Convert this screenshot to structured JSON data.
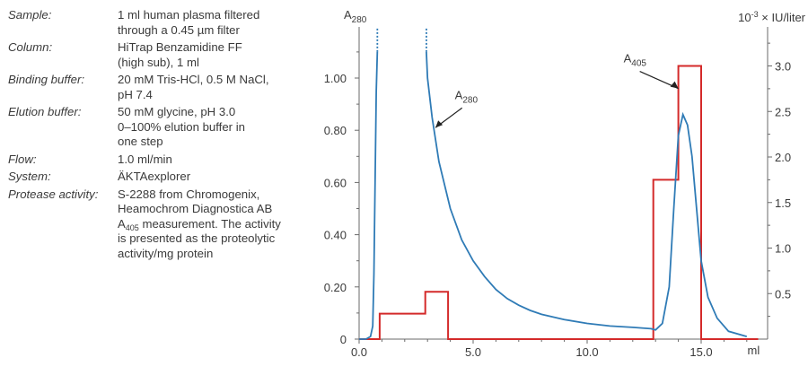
{
  "conditions": [
    {
      "label": "Sample:",
      "lines": [
        "1 ml human plasma filtered",
        "through a 0.45 µm filter"
      ]
    },
    {
      "label": "Column:",
      "lines": [
        "HiTrap Benzamidine FF",
        "(high sub), 1 ml"
      ]
    },
    {
      "label": "Binding buffer:",
      "lines": [
        "20 mM Tris-HCl, 0.5 M NaCl,",
        "pH 7.4"
      ]
    },
    {
      "label": "Elution buffer:",
      "lines": [
        "50 mM glycine, pH 3.0",
        "0–100% elution buffer in",
        "one step"
      ]
    },
    {
      "label": "Flow:",
      "lines": [
        "1.0 ml/min"
      ]
    },
    {
      "label": "System:",
      "lines": [
        "ÄKTAexplorer"
      ]
    },
    {
      "label": "Protease activity:",
      "lines": [
        "S-2288 from Chromogenix,",
        "Heamochrom Diagnostica AB"
      ],
      "a405_line": {
        "main": "A",
        "sub": "405",
        "rest": " measurement. The activity"
      },
      "lines_after": [
        "is presented as the proteolytic",
        "activity/mg protein"
      ]
    }
  ],
  "chart_data": {
    "type": "line",
    "xlabel": "ml",
    "ylabel_left": {
      "main": "A",
      "sub": "280"
    },
    "ylabel_right": {
      "prefix": "10",
      "sup": "-3",
      "rest": " × IU/liter"
    },
    "xlim": [
      -0.5,
      17.5
    ],
    "ylim_left": [
      0,
      1.18
    ],
    "ylim_right": [
      0,
      3.3
    ],
    "x_ticks": [
      0,
      5,
      10,
      15
    ],
    "x_tick_labels": [
      "0.0",
      "5.0",
      "10.0",
      "15.0"
    ],
    "y_left_ticks": [
      0,
      0.2,
      0.4,
      0.6,
      0.8,
      1.0
    ],
    "y_left_tick_labels": [
      "0",
      "0.20",
      "0.40",
      "0.60",
      "0.80",
      "1.00"
    ],
    "y_right_ticks": [
      0.5,
      1.0,
      1.5,
      2.0,
      2.5,
      3.0
    ],
    "y_right_tick_labels": [
      "0.5",
      "1.0",
      "1.5",
      "2.0",
      "2.5",
      "3.0"
    ],
    "colors": {
      "a280": "#2f7bb6",
      "a405": "#d42a2a",
      "axis": "#6a6a6a"
    },
    "series": [
      {
        "name": "A280",
        "axis": "left",
        "points": [
          [
            0,
            0
          ],
          [
            0.3,
            0
          ],
          [
            0.5,
            0.01
          ],
          [
            0.6,
            0.05
          ],
          [
            0.65,
            0.25
          ],
          [
            0.7,
            0.6
          ],
          [
            0.75,
            0.95
          ],
          [
            0.8,
            1.1
          ],
          [
            2.95,
            1.1
          ],
          [
            3.0,
            1.0
          ],
          [
            3.2,
            0.85
          ],
          [
            3.5,
            0.68
          ],
          [
            4.0,
            0.5
          ],
          [
            4.5,
            0.38
          ],
          [
            5.0,
            0.3
          ],
          [
            5.5,
            0.24
          ],
          [
            6.0,
            0.19
          ],
          [
            6.5,
            0.155
          ],
          [
            7.0,
            0.13
          ],
          [
            7.5,
            0.11
          ],
          [
            8.0,
            0.095
          ],
          [
            9.0,
            0.075
          ],
          [
            10.0,
            0.06
          ],
          [
            11.0,
            0.05
          ],
          [
            12.0,
            0.045
          ],
          [
            12.8,
            0.04
          ],
          [
            13.0,
            0.035
          ],
          [
            13.3,
            0.06
          ],
          [
            13.6,
            0.2
          ],
          [
            13.8,
            0.5
          ],
          [
            14.0,
            0.78
          ],
          [
            14.2,
            0.86
          ],
          [
            14.4,
            0.82
          ],
          [
            14.6,
            0.7
          ],
          [
            14.8,
            0.5
          ],
          [
            15.0,
            0.3
          ],
          [
            15.3,
            0.16
          ],
          [
            15.7,
            0.08
          ],
          [
            16.2,
            0.03
          ],
          [
            17.0,
            0.01
          ]
        ],
        "break_top_x": [
          0.8,
          2.95
        ],
        "break_top_y": 1.1,
        "break_top_to": 1.19
      },
      {
        "name": "A405",
        "axis": "right",
        "steps": [
          [
            0,
            0
          ],
          [
            0.9,
            0
          ],
          [
            0.9,
            0.28
          ],
          [
            2.9,
            0.28
          ],
          [
            2.9,
            0.52
          ],
          [
            3.9,
            0.52
          ],
          [
            3.9,
            0
          ],
          [
            12.9,
            0
          ],
          [
            12.9,
            1.75
          ],
          [
            14.0,
            1.75
          ],
          [
            14.0,
            3.0
          ],
          [
            15.0,
            3.0
          ],
          [
            15.0,
            0
          ],
          [
            17.5,
            0
          ]
        ]
      }
    ],
    "annotations": [
      {
        "text_main": "A",
        "text_sub": "280",
        "label_at": [
          4.2,
          0.92
        ],
        "arrow_to": [
          3.35,
          0.81
        ]
      },
      {
        "text_main": "A",
        "text_sub": "405",
        "label_at": [
          11.6,
          1.06
        ],
        "arrow_to": [
          14.0,
          0.96
        ]
      }
    ]
  }
}
